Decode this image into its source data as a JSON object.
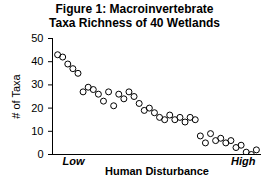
{
  "chart_data": {
    "type": "scatter",
    "title": "Figure 1:  Macroinvertebrate Taxa Richness of 40 Wetlands",
    "x_label": "Human Disturbance",
    "y_label": "# of Taxa",
    "annotations": [
      "Low",
      "High"
    ],
    "x": [
      1,
      2,
      3,
      4,
      5,
      6,
      7,
      8,
      9,
      10,
      11,
      12,
      13,
      14,
      15,
      16,
      17,
      18,
      19,
      20,
      21,
      22,
      23,
      24,
      25,
      26,
      27,
      28,
      29,
      30,
      31,
      32,
      33,
      34,
      35,
      36,
      37,
      38,
      39,
      40
    ],
    "values": [
      43,
      42,
      39,
      37,
      35,
      27,
      29,
      28,
      26,
      23,
      27,
      21,
      26,
      24,
      27,
      25,
      22,
      19,
      20,
      18,
      16,
      15,
      17,
      15,
      16,
      14,
      16,
      15,
      8,
      5,
      9,
      6,
      7,
      5,
      6,
      3,
      4,
      1,
      0,
      2
    ],
    "color": "#000000",
    "marker": "circle",
    "xlim": [
      0,
      41
    ],
    "ylim": [
      0,
      50
    ],
    "yticks": [
      0,
      10,
      20,
      30,
      40,
      50
    ],
    "grid": false,
    "tick_labels": "y"
  }
}
